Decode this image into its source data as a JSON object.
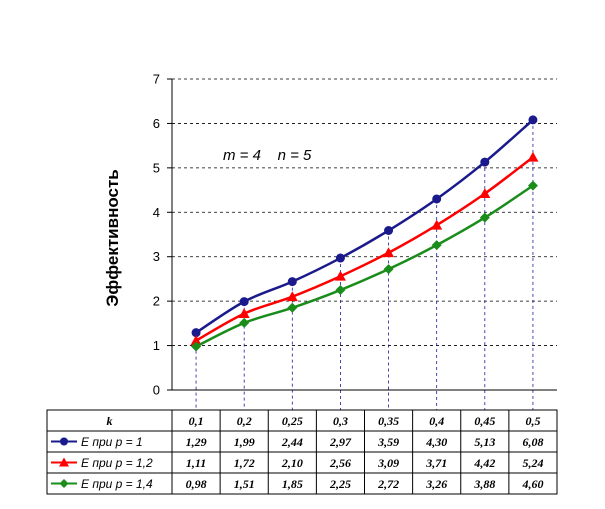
{
  "chart_data": {
    "type": "line",
    "ylabel": "Эффективность",
    "xlabel": "",
    "ylim": [
      0,
      7
    ],
    "yticks": [
      "0",
      "1",
      "2",
      "3",
      "4",
      "5",
      "6",
      "7"
    ],
    "annotation": "m = 4    n = 5",
    "grid": "horizontal dashed",
    "x_header": "k",
    "categories": [
      "0,1",
      "0,2",
      "0,25",
      "0,3",
      "0,35",
      "0,4",
      "0,45",
      "0,5"
    ],
    "series": [
      {
        "name": "E при p = 1",
        "color": "#1a1a8c",
        "marker": "circle",
        "values": [
          1.29,
          1.99,
          2.44,
          2.97,
          3.59,
          4.3,
          5.13,
          6.08
        ],
        "labels": [
          "1,29",
          "1,99",
          "2,44",
          "2,97",
          "3,59",
          "4,30",
          "5,13",
          "6,08"
        ]
      },
      {
        "name": "E при p = 1,2",
        "color": "#ff0000",
        "marker": "triangle",
        "values": [
          1.11,
          1.72,
          2.1,
          2.56,
          3.09,
          3.71,
          4.42,
          5.24
        ],
        "labels": [
          "1,11",
          "1,72",
          "2,10",
          "2,56",
          "3,09",
          "3,71",
          "4,42",
          "5,24"
        ]
      },
      {
        "name": "E при p = 1,4",
        "color": "#1a8c1a",
        "marker": "diamond",
        "values": [
          0.98,
          1.51,
          1.85,
          2.25,
          2.72,
          3.26,
          3.88,
          4.6
        ],
        "labels": [
          "0,98",
          "1,51",
          "1,85",
          "2,25",
          "2,72",
          "3,26",
          "3,88",
          "4,60"
        ]
      }
    ]
  }
}
